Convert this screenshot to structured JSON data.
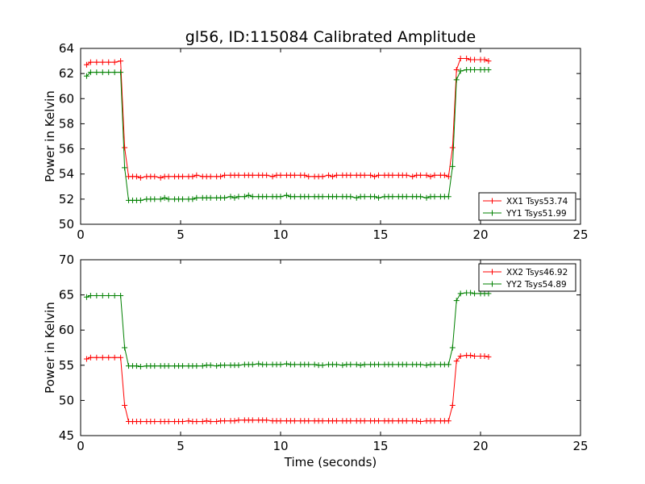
{
  "chart_data": [
    {
      "type": "line",
      "title": "gl56, ID:115084 Calibrated Amplitude",
      "xlabel": "",
      "ylabel": "Power in Kelvin",
      "xlim": [
        0,
        25
      ],
      "ylim": [
        50,
        64
      ],
      "xticks": [
        0,
        5,
        10,
        15,
        20,
        25
      ],
      "yticks": [
        50,
        52,
        54,
        56,
        58,
        60,
        62,
        64
      ],
      "legend_position": "lower-right",
      "x": [
        0.3,
        0.5,
        0.8,
        1.1,
        1.4,
        1.7,
        2.0,
        2.2,
        2.4,
        2.6,
        2.8,
        3.0,
        3.3,
        3.5,
        3.7,
        4.0,
        4.2,
        4.4,
        4.7,
        4.9,
        5.1,
        5.4,
        5.6,
        5.8,
        6.1,
        6.3,
        6.5,
        6.8,
        7.0,
        7.2,
        7.5,
        7.7,
        7.9,
        8.2,
        8.4,
        8.6,
        8.9,
        9.1,
        9.3,
        9.6,
        9.8,
        10.0,
        10.3,
        10.5,
        10.7,
        11.0,
        11.2,
        11.4,
        11.7,
        11.9,
        12.1,
        12.4,
        12.6,
        12.8,
        13.1,
        13.3,
        13.5,
        13.8,
        14.0,
        14.2,
        14.5,
        14.7,
        14.9,
        15.2,
        15.4,
        15.6,
        15.9,
        16.1,
        16.3,
        16.6,
        16.8,
        17.0,
        17.3,
        17.5,
        17.7,
        18.0,
        18.2,
        18.4,
        18.6,
        18.8,
        19.0,
        19.3,
        19.5,
        19.7,
        20.0,
        20.2,
        20.4
      ],
      "series": [
        {
          "name": "XX1 Tsys53.74",
          "color": "#ff0000",
          "values": [
            62.7,
            62.9,
            62.9,
            62.9,
            62.9,
            62.9,
            63.0,
            56.1,
            53.8,
            53.8,
            53.8,
            53.7,
            53.8,
            53.8,
            53.8,
            53.7,
            53.8,
            53.8,
            53.8,
            53.8,
            53.8,
            53.8,
            53.8,
            53.9,
            53.8,
            53.8,
            53.8,
            53.8,
            53.8,
            53.9,
            53.9,
            53.9,
            53.9,
            53.9,
            53.9,
            53.9,
            53.9,
            53.9,
            53.9,
            53.8,
            53.9,
            53.9,
            53.9,
            53.9,
            53.9,
            53.9,
            53.9,
            53.8,
            53.8,
            53.8,
            53.8,
            53.9,
            53.8,
            53.9,
            53.9,
            53.9,
            53.9,
            53.9,
            53.9,
            53.9,
            53.9,
            53.8,
            53.9,
            53.9,
            53.9,
            53.9,
            53.9,
            53.9,
            53.9,
            53.8,
            53.9,
            53.9,
            53.9,
            53.8,
            53.9,
            53.9,
            53.9,
            53.8,
            56.1,
            62.3,
            63.2,
            63.2,
            63.1,
            63.1,
            63.1,
            63.1,
            63.0
          ]
        },
        {
          "name": "YY1 Tsys51.99",
          "color": "#008000",
          "values": [
            61.8,
            62.1,
            62.1,
            62.1,
            62.1,
            62.1,
            62.1,
            54.5,
            51.9,
            51.9,
            51.9,
            51.9,
            52.0,
            52.0,
            52.0,
            52.0,
            52.1,
            52.0,
            52.0,
            52.0,
            52.0,
            52.0,
            52.0,
            52.1,
            52.1,
            52.1,
            52.1,
            52.1,
            52.1,
            52.1,
            52.2,
            52.1,
            52.2,
            52.2,
            52.3,
            52.2,
            52.2,
            52.2,
            52.2,
            52.2,
            52.2,
            52.2,
            52.3,
            52.2,
            52.2,
            52.2,
            52.2,
            52.2,
            52.2,
            52.2,
            52.2,
            52.2,
            52.2,
            52.2,
            52.2,
            52.2,
            52.2,
            52.1,
            52.2,
            52.2,
            52.2,
            52.2,
            52.1,
            52.2,
            52.2,
            52.2,
            52.2,
            52.2,
            52.2,
            52.2,
            52.2,
            52.2,
            52.1,
            52.2,
            52.2,
            52.2,
            52.2,
            52.2,
            54.6,
            61.5,
            62.2,
            62.3,
            62.3,
            62.3,
            62.3,
            62.3,
            62.3
          ]
        }
      ]
    },
    {
      "type": "line",
      "title": "",
      "xlabel": "Time (seconds)",
      "ylabel": "Power in Kelvin",
      "xlim": [
        0,
        25
      ],
      "ylim": [
        45,
        70
      ],
      "xticks": [
        0,
        5,
        10,
        15,
        20,
        25
      ],
      "yticks": [
        45,
        50,
        55,
        60,
        65,
        70
      ],
      "legend_position": "upper-right",
      "x": [
        0.3,
        0.5,
        0.8,
        1.1,
        1.4,
        1.7,
        2.0,
        2.2,
        2.4,
        2.6,
        2.8,
        3.0,
        3.3,
        3.5,
        3.7,
        4.0,
        4.2,
        4.4,
        4.7,
        4.9,
        5.1,
        5.4,
        5.6,
        5.8,
        6.1,
        6.3,
        6.5,
        6.8,
        7.0,
        7.2,
        7.5,
        7.7,
        7.9,
        8.2,
        8.4,
        8.6,
        8.9,
        9.1,
        9.3,
        9.6,
        9.8,
        10.0,
        10.3,
        10.5,
        10.7,
        11.0,
        11.2,
        11.4,
        11.7,
        11.9,
        12.1,
        12.4,
        12.6,
        12.8,
        13.1,
        13.3,
        13.5,
        13.8,
        14.0,
        14.2,
        14.5,
        14.7,
        14.9,
        15.2,
        15.4,
        15.6,
        15.9,
        16.1,
        16.3,
        16.6,
        16.8,
        17.0,
        17.3,
        17.5,
        17.7,
        18.0,
        18.2,
        18.4,
        18.6,
        18.8,
        19.0,
        19.3,
        19.5,
        19.7,
        20.0,
        20.2,
        20.4
      ],
      "series": [
        {
          "name": "XX2 Tsys46.92",
          "color": "#ff0000",
          "values": [
            55.9,
            56.1,
            56.1,
            56.1,
            56.1,
            56.1,
            56.1,
            49.3,
            47.0,
            47.0,
            47.0,
            47.0,
            47.0,
            47.0,
            47.0,
            47.0,
            47.0,
            47.0,
            47.0,
            47.0,
            47.0,
            47.1,
            47.0,
            47.0,
            47.0,
            47.1,
            47.0,
            47.0,
            47.1,
            47.1,
            47.1,
            47.1,
            47.2,
            47.2,
            47.2,
            47.2,
            47.2,
            47.2,
            47.2,
            47.1,
            47.1,
            47.1,
            47.1,
            47.1,
            47.1,
            47.1,
            47.1,
            47.1,
            47.1,
            47.1,
            47.1,
            47.1,
            47.1,
            47.1,
            47.1,
            47.1,
            47.1,
            47.1,
            47.1,
            47.1,
            47.1,
            47.1,
            47.1,
            47.1,
            47.1,
            47.1,
            47.1,
            47.1,
            47.1,
            47.1,
            47.1,
            47.0,
            47.1,
            47.1,
            47.1,
            47.1,
            47.1,
            47.1,
            49.3,
            55.6,
            56.3,
            56.4,
            56.4,
            56.3,
            56.3,
            56.3,
            56.2
          ]
        },
        {
          "name": "YY2 Tsys54.89",
          "color": "#008000",
          "values": [
            64.7,
            64.9,
            64.9,
            64.9,
            64.9,
            64.9,
            64.9,
            57.5,
            54.9,
            54.9,
            54.9,
            54.8,
            54.9,
            54.9,
            54.9,
            54.9,
            54.9,
            54.9,
            54.9,
            54.9,
            54.9,
            54.9,
            54.9,
            54.9,
            54.9,
            55.0,
            55.0,
            54.9,
            55.0,
            55.0,
            55.0,
            55.0,
            55.0,
            55.1,
            55.1,
            55.1,
            55.2,
            55.1,
            55.1,
            55.1,
            55.1,
            55.1,
            55.2,
            55.1,
            55.1,
            55.1,
            55.1,
            55.1,
            55.1,
            55.0,
            55.0,
            55.1,
            55.1,
            55.1,
            55.0,
            55.1,
            55.1,
            55.1,
            55.0,
            55.1,
            55.1,
            55.1,
            55.1,
            55.1,
            55.1,
            55.1,
            55.1,
            55.1,
            55.1,
            55.1,
            55.1,
            55.1,
            55.0,
            55.1,
            55.1,
            55.1,
            55.1,
            55.1,
            57.5,
            64.2,
            65.2,
            65.3,
            65.3,
            65.2,
            65.2,
            65.2,
            65.2
          ]
        }
      ]
    }
  ]
}
